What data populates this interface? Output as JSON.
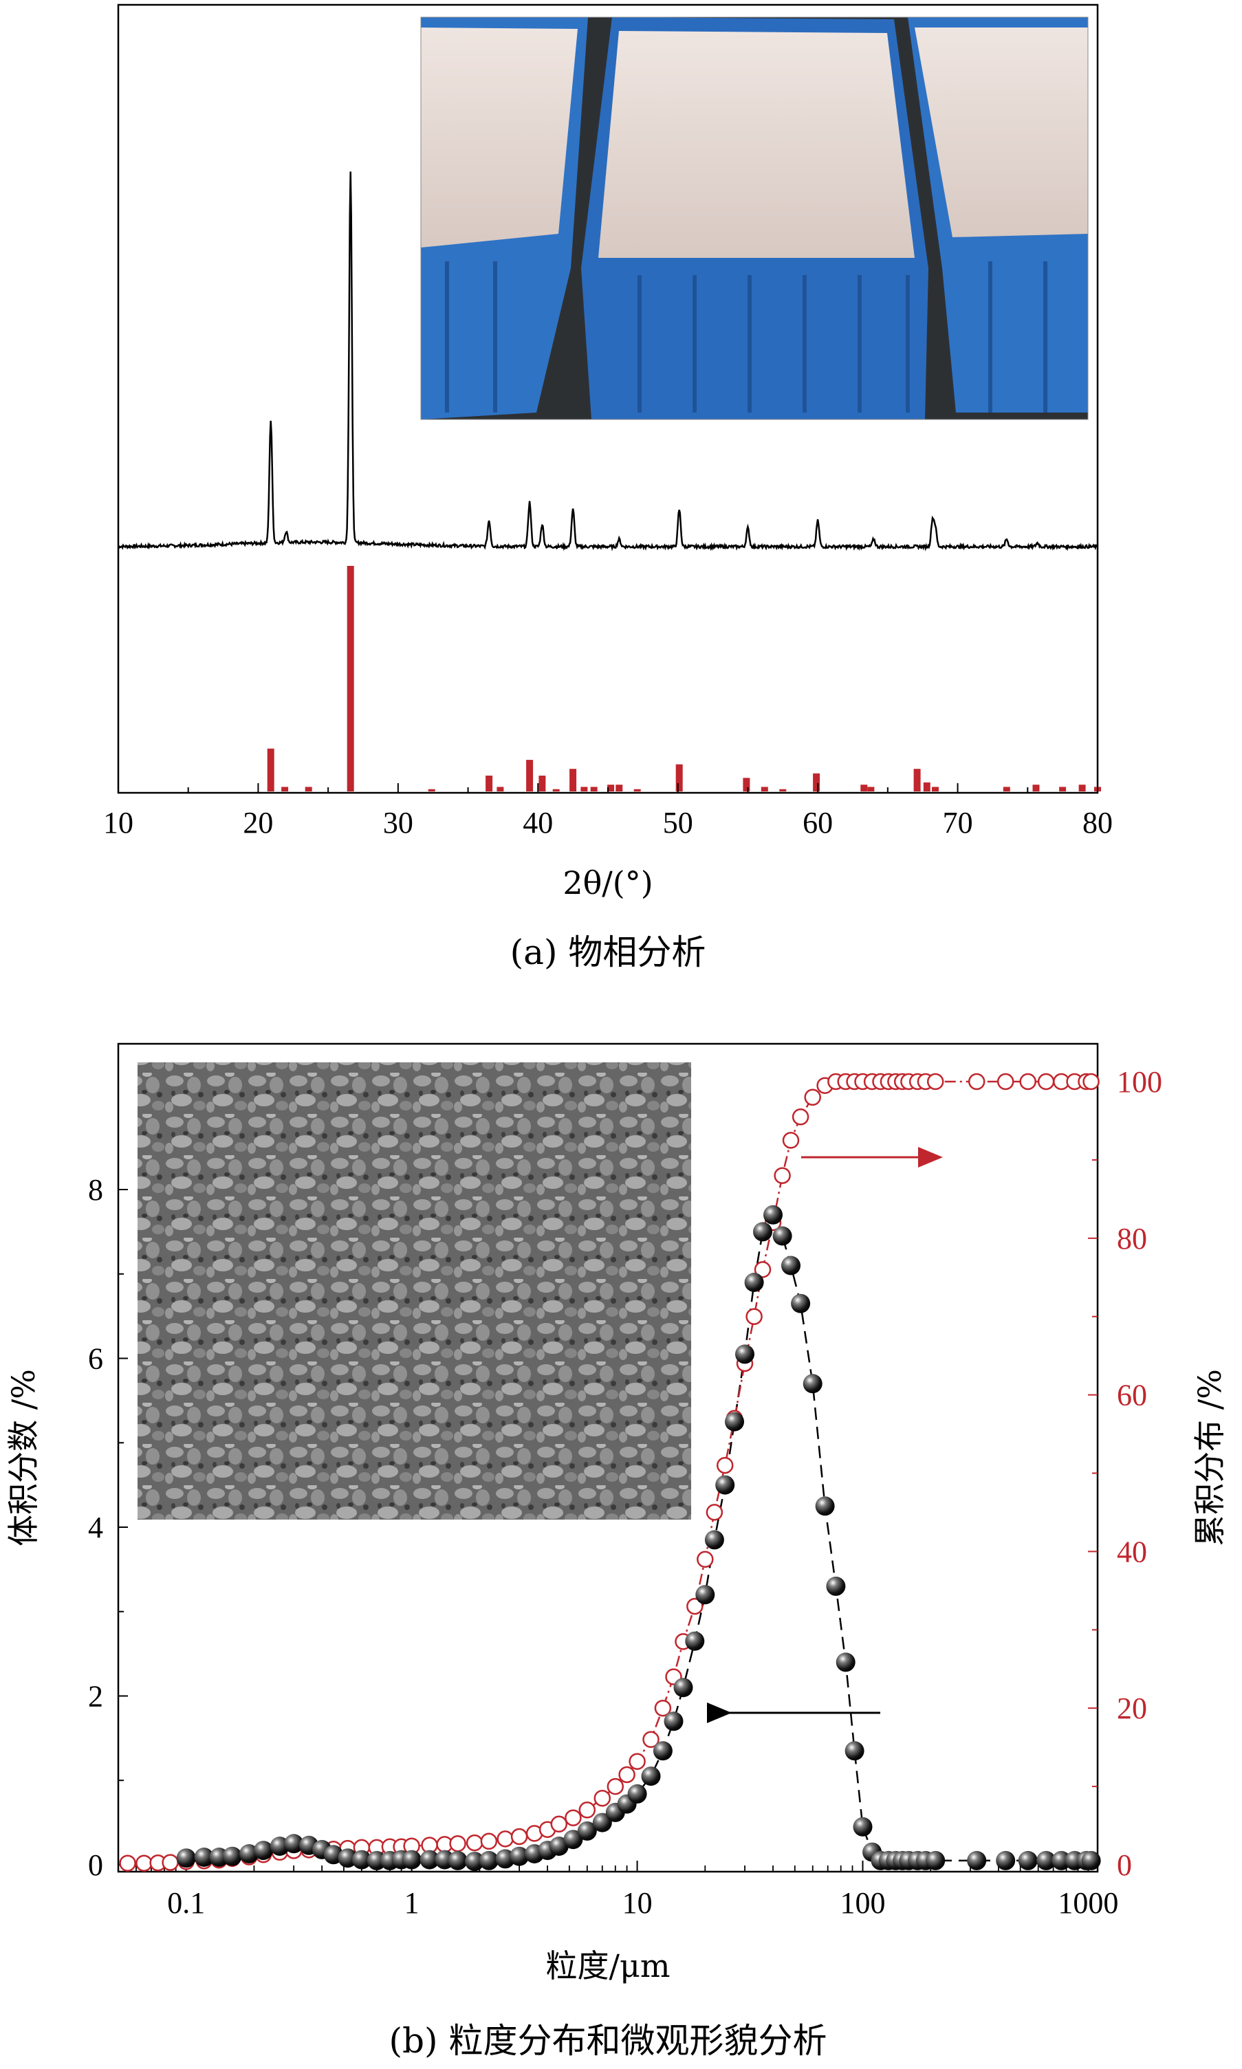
{
  "chart_data": [
    {
      "type": "line",
      "caption": "(a) 物相分析",
      "xlabel": "2θ/(°)",
      "xlim": [
        10,
        80
      ],
      "xticks": [
        10,
        20,
        30,
        40,
        50,
        60,
        70,
        80
      ],
      "ylabel": "",
      "grid": false,
      "inset": "photo of white powder in blue plastic crates",
      "colors": {
        "pattern": "#000000",
        "reference": "#c0262d"
      },
      "series": [
        {
          "values_kind": "peaks",
          "peaks": [
            [
              20.9,
              0.33
            ],
            [
              22.0,
              0.03
            ],
            [
              26.6,
              1.0
            ],
            [
              36.5,
              0.07
            ],
            [
              39.4,
              0.12
            ],
            [
              40.3,
              0.06
            ],
            [
              42.5,
              0.1
            ],
            [
              45.8,
              0.02
            ],
            [
              50.1,
              0.1
            ],
            [
              55.0,
              0.05
            ],
            [
              60.0,
              0.07
            ],
            [
              64.0,
              0.02
            ],
            [
              68.2,
              0.07
            ],
            [
              68.4,
              0.05
            ],
            [
              73.5,
              0.02
            ],
            [
              75.7,
              0.01
            ]
          ]
        },
        {
          "values_kind": "reference_sticks",
          "x": [
            20.9,
            21.9,
            23.6,
            26.6,
            32.4,
            36.5,
            37.3,
            39.4,
            40.3,
            41.3,
            42.5,
            43.3,
            44.0,
            45.2,
            45.8,
            47.1,
            50.1,
            54.9,
            56.2,
            57.5,
            59.9,
            63.3,
            63.8,
            67.1,
            67.8,
            68.4,
            73.5,
            75.6,
            77.5,
            78.9,
            80.0,
            80.6,
            81.5
          ],
          "values": [
            0.19,
            0.02,
            0.02,
            1.0,
            0.01,
            0.07,
            0.02,
            0.14,
            0.07,
            0.01,
            0.1,
            0.02,
            0.02,
            0.03,
            0.03,
            0.01,
            0.12,
            0.06,
            0.02,
            0.01,
            0.08,
            0.03,
            0.02,
            0.1,
            0.04,
            0.02,
            0.02,
            0.03,
            0.02,
            0.03,
            0.02,
            0.01,
            0.03
          ]
        }
      ]
    },
    {
      "type": "scatter",
      "caption": "(b) 粒度分布和微观形貌分析",
      "xlabel": "粒度/μm",
      "ylabel": "体积分数 /%",
      "y2label": "累积分布 /%",
      "xscale": "log",
      "xlim": [
        0.05,
        1100
      ],
      "ylim": [
        0,
        9.5
      ],
      "y2lim": [
        0,
        105
      ],
      "xtick_labels": [
        "0.1",
        "1",
        "10",
        "100",
        "1000"
      ],
      "yticks": [
        0,
        2,
        4,
        6,
        8
      ],
      "y2ticks": [
        0,
        20,
        40,
        60,
        80,
        100
      ],
      "grid": false,
      "inset": "SEM micrograph of granular particles",
      "annotations": [
        "arrow pointing left to 体积分数 axis",
        "arrow pointing right to 累积分布 axis"
      ],
      "colors": {
        "frequency": "#000000",
        "cumulative": "#c0262d"
      },
      "series": [
        {
          "axis": "left",
          "marker": "filled black sphere",
          "x": [
            0.1,
            0.12,
            0.14,
            0.16,
            0.19,
            0.22,
            0.26,
            0.3,
            0.35,
            0.4,
            0.45,
            0.52,
            0.6,
            0.7,
            0.8,
            0.9,
            1.0,
            1.2,
            1.4,
            1.6,
            1.9,
            2.2,
            2.6,
            3.0,
            3.5,
            4.0,
            4.5,
            5.2,
            6.0,
            7.0,
            8.0,
            9.0,
            10.0,
            11.5,
            13.0,
            14.5,
            16.0,
            18.0,
            20.0,
            22.0,
            24.5,
            27.0,
            30.0,
            33.0,
            36.0,
            40.0,
            44.0,
            48.0,
            53.0,
            60.0,
            68.0,
            76.0,
            84.0,
            92.0,
            100,
            110,
            120,
            130,
            140,
            150,
            160,
            175,
            190,
            210,
            320,
            430,
            540,
            650,
            760,
            870,
            980,
            1030
          ],
          "values": [
            0.08,
            0.09,
            0.09,
            0.1,
            0.13,
            0.17,
            0.22,
            0.25,
            0.23,
            0.18,
            0.12,
            0.08,
            0.06,
            0.05,
            0.05,
            0.06,
            0.06,
            0.06,
            0.06,
            0.05,
            0.04,
            0.05,
            0.07,
            0.1,
            0.13,
            0.17,
            0.22,
            0.3,
            0.4,
            0.5,
            0.62,
            0.72,
            0.84,
            1.05,
            1.35,
            1.7,
            2.1,
            2.65,
            3.2,
            3.85,
            4.5,
            5.25,
            6.05,
            6.9,
            7.5,
            7.7,
            7.45,
            7.1,
            6.65,
            5.7,
            4.25,
            3.3,
            2.4,
            1.35,
            0.45,
            0.15,
            0.05,
            0.05,
            0.05,
            0.05,
            0.05,
            0.05,
            0.05,
            0.05,
            0.05,
            0.05,
            0.05,
            0.05,
            0.05,
            0.05,
            0.05,
            0.05
          ]
        },
        {
          "axis": "right",
          "marker": "open red circle",
          "x": [
            0.055,
            0.065,
            0.075,
            0.085,
            0.1,
            0.12,
            0.14,
            0.16,
            0.19,
            0.22,
            0.26,
            0.3,
            0.35,
            0.4,
            0.45,
            0.52,
            0.6,
            0.7,
            0.8,
            0.9,
            1.0,
            1.2,
            1.4,
            1.6,
            1.9,
            2.2,
            2.6,
            3.0,
            3.5,
            4.0,
            4.5,
            5.2,
            6.0,
            7.0,
            8.0,
            9.0,
            10.0,
            11.5,
            13.0,
            14.5,
            16.0,
            18.0,
            20.0,
            22.0,
            24.5,
            27.0,
            30.0,
            33.0,
            36.0,
            40.0,
            44.0,
            48.0,
            53.0,
            60.0,
            68.0,
            76.0,
            84.0,
            92.0,
            100,
            110,
            120,
            130,
            140,
            150,
            160,
            175,
            190,
            210,
            320,
            430,
            540,
            650,
            760,
            870,
            980,
            1030
          ],
          "values": [
            0.2,
            0.2,
            0.25,
            0.3,
            0.4,
            0.5,
            0.6,
            0.8,
            1.0,
            1.3,
            1.6,
            1.8,
            1.9,
            2.0,
            2.0,
            2.1,
            2.2,
            2.2,
            2.3,
            2.3,
            2.4,
            2.5,
            2.6,
            2.7,
            2.8,
            3.0,
            3.3,
            3.6,
            4.0,
            4.5,
            5.2,
            6.0,
            7.0,
            8.5,
            10.0,
            11.5,
            13.2,
            16.0,
            20.0,
            24.0,
            28.5,
            33.0,
            39.0,
            45.0,
            51.0,
            57.0,
            64.0,
            70.0,
            76.0,
            82.0,
            88.0,
            92.5,
            95.5,
            98.0,
            99.5,
            100,
            100,
            100,
            100,
            100,
            100,
            100,
            100,
            100,
            100,
            100,
            100,
            100,
            100,
            100,
            100,
            100,
            100,
            100,
            100,
            100
          ]
        }
      ]
    }
  ]
}
